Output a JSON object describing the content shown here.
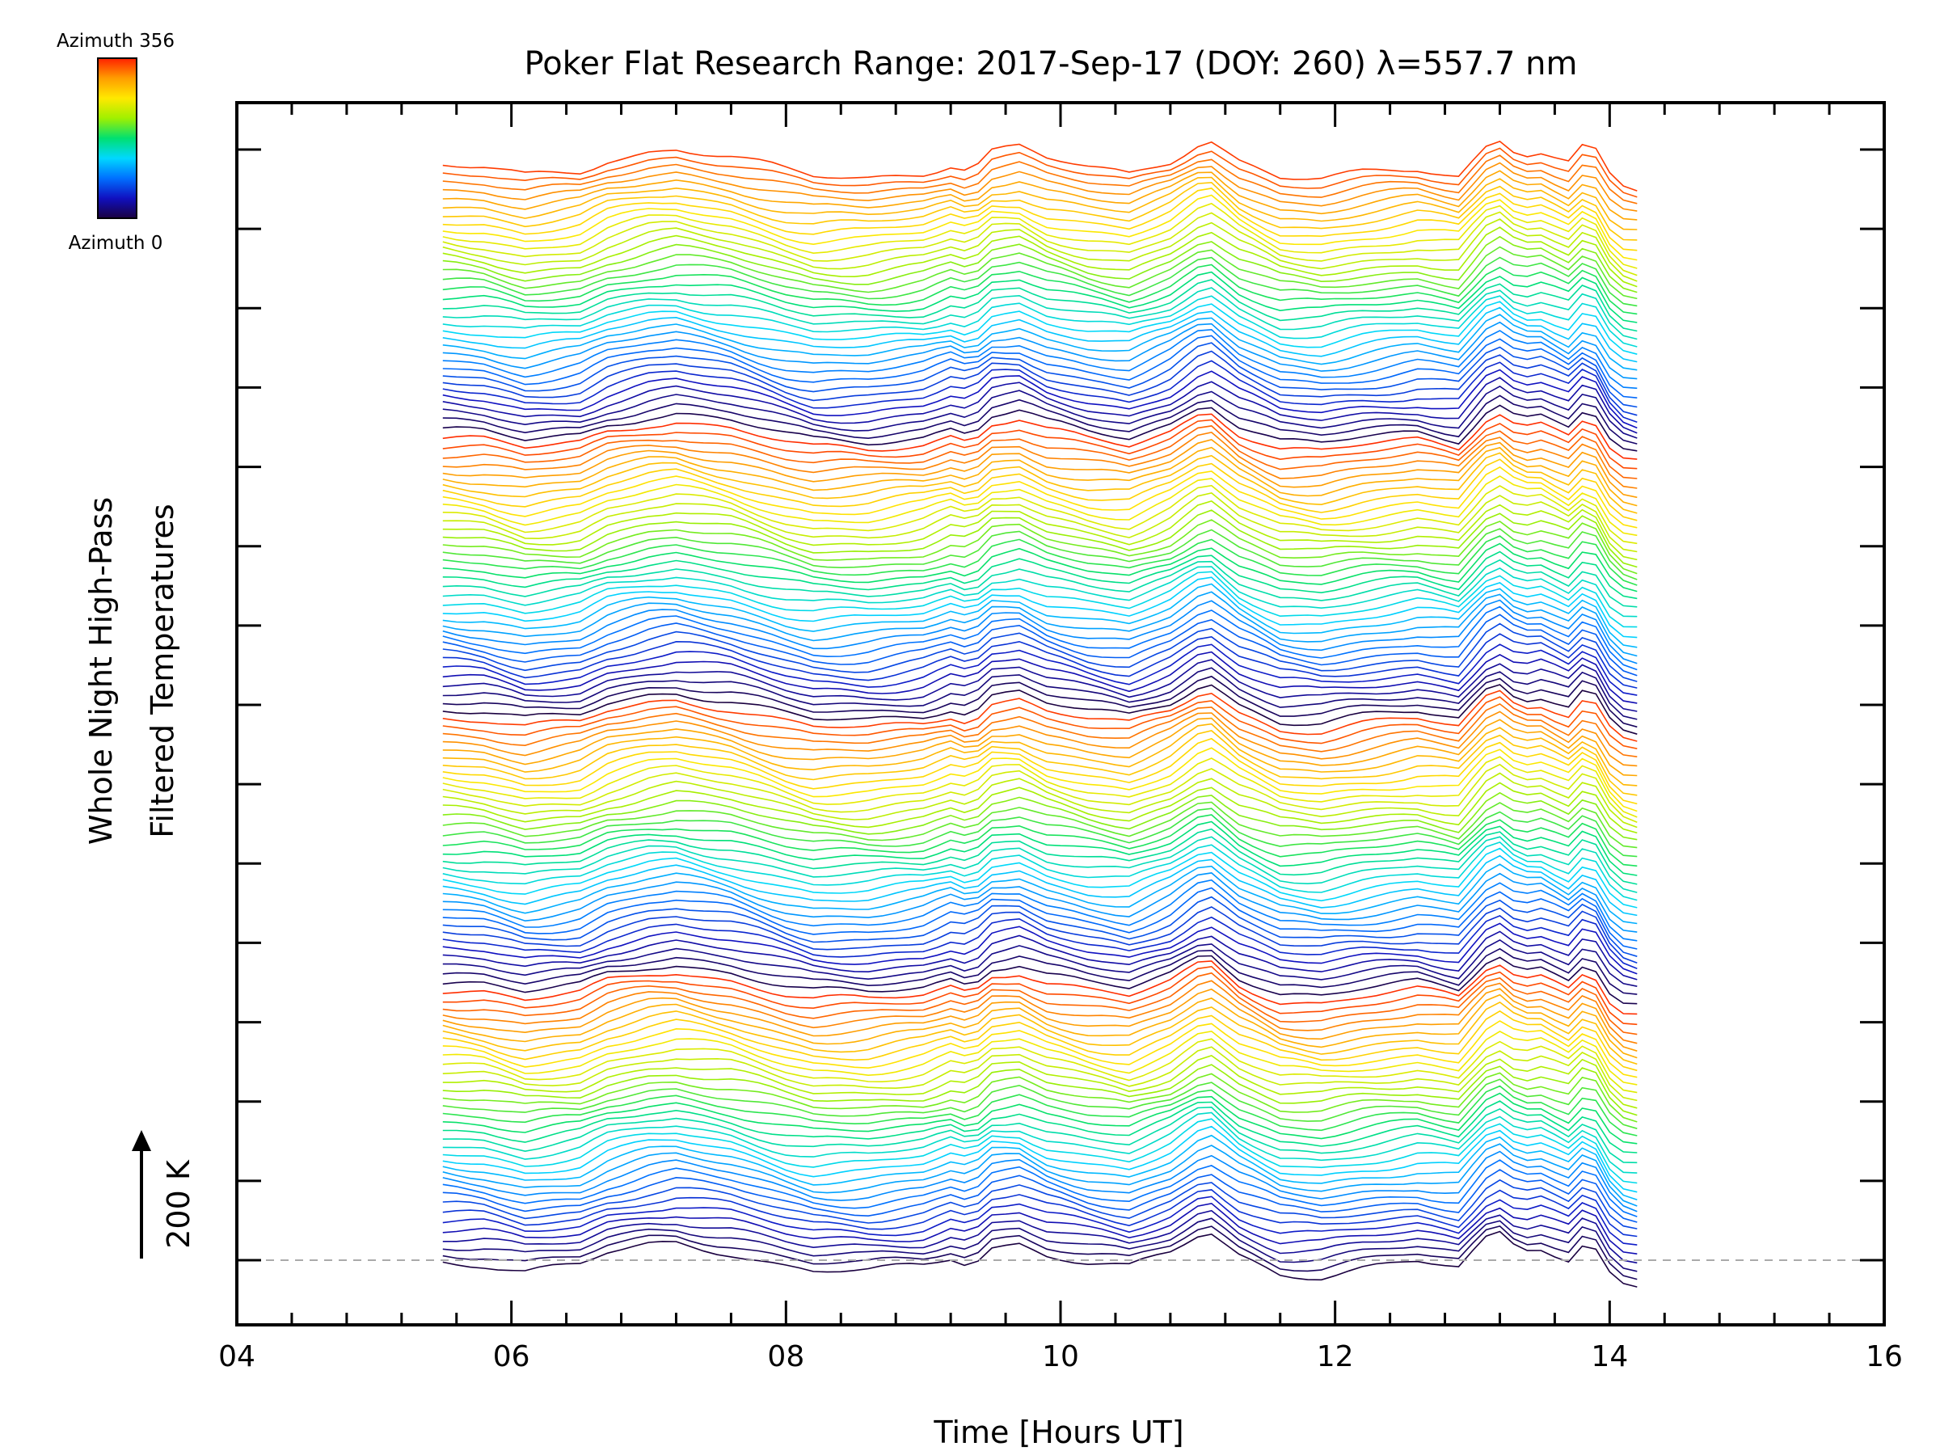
{
  "chart_data": {
    "type": "line",
    "title": "Poker Flat Research Range: 2017-Sep-17 (DOY: 260) λ=557.7 nm",
    "xlabel": "Time [Hours UT]",
    "ylabel_line1": "Whole Night High-Pass",
    "ylabel_line2": "Filtered Temperatures",
    "xlim": [
      4,
      16
    ],
    "x_ticks": [
      "04",
      "06",
      "08",
      "10",
      "12",
      "14",
      "16"
    ],
    "x_tick_values": [
      4,
      6,
      8,
      10,
      12,
      14,
      16
    ],
    "x_minor_step": 0.4,
    "y_major_ticks": 15,
    "y_minor_per_major": 0,
    "scale_bar_label": "200 K",
    "colorbar": {
      "top_label": "Azimuth 356",
      "bottom_label": "Azimuth 0",
      "colors": [
        "#ff2000",
        "#ff9d00",
        "#ffe800",
        "#a0f000",
        "#00e070",
        "#00d8ff",
        "#0070ff",
        "#1010c0",
        "#1a0040"
      ]
    },
    "baseline": {
      "style": "dashed",
      "color": "#aaaaaa"
    },
    "series_meta": {
      "count": 142,
      "t_start": 5.5,
      "t_end": 14.2,
      "t_step": 0.1,
      "azimuth_min": 0,
      "azimuth_max": 356,
      "colors_cycle": 4
    },
    "common_signal": [
      {
        "t": 5.5,
        "k": 0
      },
      {
        "t": 5.8,
        "k": -5
      },
      {
        "t": 6.1,
        "k": -20
      },
      {
        "t": 6.5,
        "k": -10
      },
      {
        "t": 6.7,
        "k": 10
      },
      {
        "t": 7.0,
        "k": 25
      },
      {
        "t": 7.2,
        "k": 30
      },
      {
        "t": 7.6,
        "k": 15
      },
      {
        "t": 8.0,
        "k": -10
      },
      {
        "t": 8.2,
        "k": -20
      },
      {
        "t": 8.6,
        "k": -20
      },
      {
        "t": 9.0,
        "k": -10
      },
      {
        "t": 9.2,
        "k": 5
      },
      {
        "t": 9.35,
        "k": -5
      },
      {
        "t": 9.5,
        "k": 25
      },
      {
        "t": 9.7,
        "k": 30
      },
      {
        "t": 9.9,
        "k": 10
      },
      {
        "t": 10.2,
        "k": -5
      },
      {
        "t": 10.5,
        "k": -15
      },
      {
        "t": 10.8,
        "k": 10
      },
      {
        "t": 11.0,
        "k": 40
      },
      {
        "t": 11.1,
        "k": 45
      },
      {
        "t": 11.3,
        "k": 10
      },
      {
        "t": 11.6,
        "k": -20
      },
      {
        "t": 11.9,
        "k": -25
      },
      {
        "t": 12.2,
        "k": -15
      },
      {
        "t": 12.6,
        "k": -5
      },
      {
        "t": 12.9,
        "k": -15
      },
      {
        "t": 13.1,
        "k": 35
      },
      {
        "t": 13.2,
        "k": 45
      },
      {
        "t": 13.35,
        "k": 20
      },
      {
        "t": 13.5,
        "k": 25
      },
      {
        "t": 13.7,
        "k": 5
      },
      {
        "t": 13.85,
        "k": 40
      },
      {
        "t": 14.0,
        "k": -20
      },
      {
        "t": 14.1,
        "k": -40
      },
      {
        "t": 14.2,
        "k": -45
      }
    ]
  }
}
